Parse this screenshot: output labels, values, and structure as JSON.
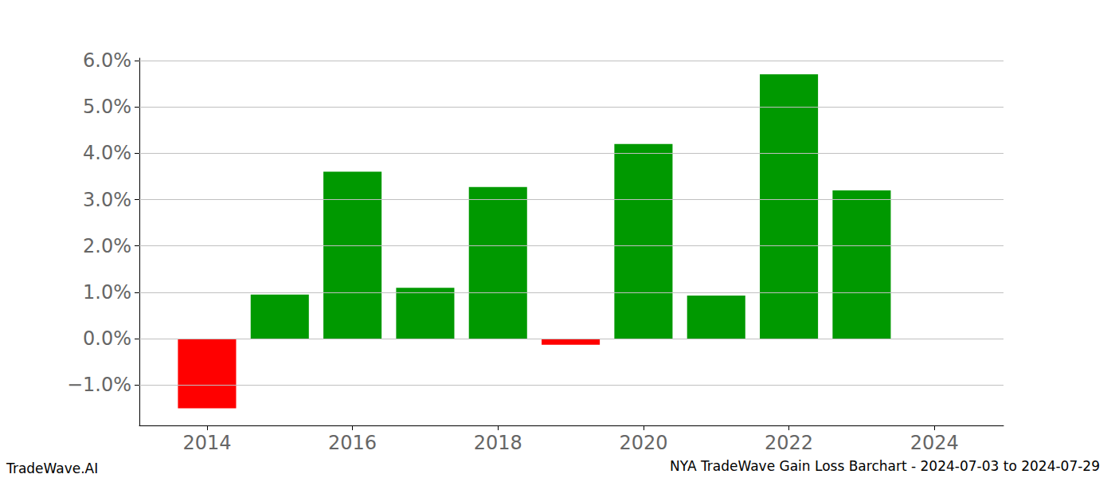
{
  "chart_data": {
    "type": "bar",
    "title": "NYA TradeWave Gain Loss Barchart - 2024-07-03 to 2024-07-29",
    "annotations": [
      "TradeWave.AI"
    ],
    "x": [
      2014,
      2015,
      2016,
      2017,
      2018,
      2019,
      2020,
      2021,
      2022,
      2023
    ],
    "values": [
      -1.5,
      0.95,
      3.6,
      1.1,
      3.27,
      -0.13,
      4.2,
      0.93,
      5.7,
      3.2
    ],
    "colors": [
      "#ff0000",
      "#009900",
      "#009900",
      "#009900",
      "#009900",
      "#ff0000",
      "#009900",
      "#009900",
      "#009900",
      "#009900"
    ],
    "xlim": [
      2013.07,
      2024.95
    ],
    "xticks": [
      2014,
      2016,
      2018,
      2020,
      2022,
      2024
    ],
    "ylim": [
      -1.87,
      6.05
    ],
    "yticks": [
      {
        "value": -1,
        "label": "−1.0%"
      },
      {
        "value": 0,
        "label": "0.0%"
      },
      {
        "value": 1,
        "label": "1.0%"
      },
      {
        "value": 2,
        "label": "2.0%"
      },
      {
        "value": 3,
        "label": "3.0%"
      },
      {
        "value": 4,
        "label": "4.0%"
      },
      {
        "value": 5,
        "label": "5.0%"
      },
      {
        "value": 6,
        "label": "6.0%"
      }
    ],
    "grid": true
  }
}
